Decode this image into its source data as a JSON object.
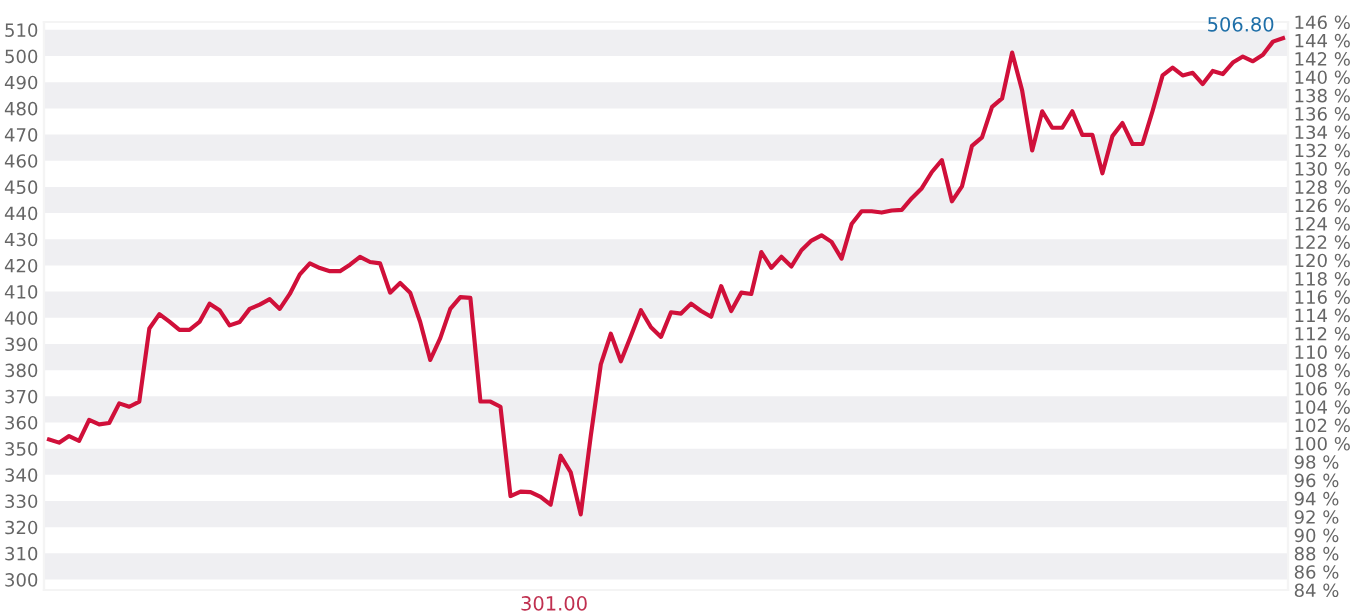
{
  "chart_data": {
    "type": "line",
    "categories": [
      null,
      null,
      null,
      null,
      null,
      null,
      null,
      null,
      null,
      null,
      null,
      null,
      null,
      null,
      null,
      null,
      null,
      null,
      null,
      null,
      null,
      null,
      null,
      null,
      null,
      null,
      null,
      null,
      null,
      null,
      null,
      null,
      null,
      null,
      null,
      null,
      null,
      null,
      null,
      null,
      null,
      null,
      null,
      null,
      null,
      null,
      null,
      null,
      null,
      null,
      null,
      null,
      null,
      null,
      null,
      null,
      null,
      null,
      null,
      null,
      null,
      null,
      null,
      null,
      null,
      null,
      null,
      null,
      null,
      null,
      null,
      null,
      null,
      null,
      null,
      null,
      null,
      null,
      null,
      null,
      null,
      null,
      null,
      null,
      null,
      null,
      null,
      null,
      null,
      null,
      null,
      null,
      null,
      null,
      null,
      null,
      null,
      null,
      null,
      null,
      null,
      null,
      null,
      null,
      null,
      null,
      null,
      null,
      null,
      null,
      null,
      null,
      null,
      null,
      null,
      null,
      null,
      null,
      null,
      null,
      null,
      null,
      null,
      null
    ],
    "series": [
      {
        "color": "#d0103a",
        "values": [
          353.5,
          352.3,
          354.8,
          353.0,
          361.0,
          359.3,
          359.8,
          367.3,
          366,
          368,
          395.9,
          401.4,
          398.5,
          395.4,
          395.4,
          398.4,
          405.4,
          402.9,
          397.1,
          398.4,
          403.4,
          405,
          407.1,
          403.4,
          409.1,
          416.6,
          420.8,
          419,
          417.8,
          417.8,
          420.3,
          423.3,
          421.3,
          420.8,
          409.6,
          413.3,
          409.6,
          398.4,
          383.9,
          392.2,
          403.4,
          407.9,
          407.6,
          368,
          368,
          366,
          331.9,
          333.6,
          333.4,
          331.6,
          328.6,
          347.3,
          341,
          324.9,
          354.8,
          382.2,
          393.9,
          383.4,
          393,
          402.9,
          396.4,
          392.7,
          402.1,
          401.6,
          405.4,
          402.6,
          400.4,
          412.1,
          402.6,
          409.6,
          409.1,
          425.1,
          419.1,
          423.3,
          419.6,
          425.8,
          429.5,
          431.5,
          429,
          422.6,
          435.8,
          440.7,
          440.7,
          440.2,
          441,
          441.2,
          445.7,
          449.5,
          455.7,
          460.2,
          444.5,
          450.2,
          465.7,
          468.9,
          480.6,
          483.8,
          501.3,
          486.8,
          463.9,
          478.9,
          472.6,
          472.6,
          478.9,
          469.9,
          469.9,
          455.2,
          469.4,
          474.4,
          466.4,
          466.4,
          479,
          492.6,
          495.6,
          492.6,
          493.6,
          489.3,
          494.3,
          493.1,
          497.5,
          499.8,
          498,
          500.5,
          505.5,
          506.8
        ]
      }
    ],
    "ylim": [
      296,
      513
    ],
    "yticks": [
      300,
      310,
      320,
      330,
      340,
      350,
      360,
      370,
      380,
      390,
      400,
      410,
      420,
      430,
      440,
      450,
      460,
      470,
      480,
      490,
      500,
      510
    ],
    "y2lim": [
      84,
      146
    ],
    "y2ticks": [
      {
        "value": 84,
        "label": "84 %"
      },
      {
        "value": 86,
        "label": "86 %"
      },
      {
        "value": 88,
        "label": "88 %"
      },
      {
        "value": 90,
        "label": "90 %"
      },
      {
        "value": 92,
        "label": "92 %"
      },
      {
        "value": 94,
        "label": "94 %"
      },
      {
        "value": 96,
        "label": "96 %"
      },
      {
        "value": 98,
        "label": "98 %"
      },
      {
        "value": 100,
        "label": "100 %"
      },
      {
        "value": 102,
        "label": "102 %"
      },
      {
        "value": 104,
        "label": "104 %"
      },
      {
        "value": 106,
        "label": "106 %"
      },
      {
        "value": 108,
        "label": "108 %"
      },
      {
        "value": 110,
        "label": "110 %"
      },
      {
        "value": 112,
        "label": "112 %"
      },
      {
        "value": 114,
        "label": "114 %"
      },
      {
        "value": 116,
        "label": "116 %"
      },
      {
        "value": 118,
        "label": "118 %"
      },
      {
        "value": 120,
        "label": "120 %"
      },
      {
        "value": 122,
        "label": "122 %"
      },
      {
        "value": 124,
        "label": "124 %"
      },
      {
        "value": 126,
        "label": "126 %"
      },
      {
        "value": 128,
        "label": "128 %"
      },
      {
        "value": 130,
        "label": "130 %"
      },
      {
        "value": 132,
        "label": "132 %"
      },
      {
        "value": 134,
        "label": "134 %"
      },
      {
        "value": 136,
        "label": "136 %"
      },
      {
        "value": 138,
        "label": "138 %"
      },
      {
        "value": 140,
        "label": "140 %"
      },
      {
        "value": 142,
        "label": "142 %"
      },
      {
        "value": 144,
        "label": "144 %"
      },
      {
        "value": 146,
        "label": "146 %"
      }
    ],
    "bands": [
      {
        "axis": "y",
        "from": 300,
        "to": 310,
        "color": "#efeff2"
      },
      {
        "axis": "y",
        "from": 320,
        "to": 330,
        "color": "#efeff2"
      },
      {
        "axis": "y",
        "from": 340,
        "to": 350,
        "color": "#efeff2"
      },
      {
        "axis": "y",
        "from": 360,
        "to": 370,
        "color": "#efeff2"
      },
      {
        "axis": "y",
        "from": 380,
        "to": 390,
        "color": "#efeff2"
      },
      {
        "axis": "y",
        "from": 400,
        "to": 410,
        "color": "#efeff2"
      },
      {
        "axis": "y",
        "from": 420,
        "to": 430,
        "color": "#efeff2"
      },
      {
        "axis": "y",
        "from": 440,
        "to": 450,
        "color": "#efeff2"
      },
      {
        "axis": "y",
        "from": 460,
        "to": 470,
        "color": "#efeff2"
      },
      {
        "axis": "y",
        "from": 480,
        "to": 490,
        "color": "#efeff2"
      },
      {
        "axis": "y",
        "from": 500,
        "to": 510,
        "color": "#efeff2"
      }
    ],
    "marker": "none",
    "line_style": "solid",
    "annotations": [
      "506.80",
      "301.00"
    ]
  }
}
